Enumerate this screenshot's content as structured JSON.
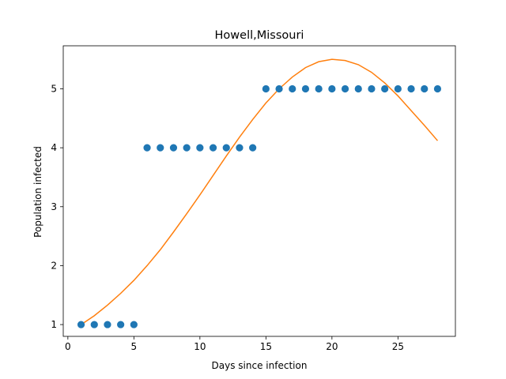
{
  "chart_data": {
    "type": "scatter",
    "title": "Howell,Missouri",
    "xlabel": "Days since infection",
    "ylabel": "Population infected",
    "xlim": [
      -0.35,
      29.35
    ],
    "ylim": [
      0.8,
      5.73
    ],
    "x_ticks": [
      0,
      5,
      10,
      15,
      20,
      25
    ],
    "y_ticks": [
      1,
      2,
      3,
      4,
      5
    ],
    "grid": false,
    "series": [
      {
        "kind": "scatter",
        "color": "#1f77b4",
        "points": [
          [
            1,
            1
          ],
          [
            2,
            1
          ],
          [
            3,
            1
          ],
          [
            4,
            1
          ],
          [
            5,
            1
          ],
          [
            6,
            4
          ],
          [
            7,
            4
          ],
          [
            8,
            4
          ],
          [
            9,
            4
          ],
          [
            10,
            4
          ],
          [
            11,
            4
          ],
          [
            12,
            4
          ],
          [
            13,
            4
          ],
          [
            14,
            4
          ],
          [
            15,
            5
          ],
          [
            16,
            5
          ],
          [
            17,
            5
          ],
          [
            18,
            5
          ],
          [
            19,
            5
          ],
          [
            20,
            5
          ],
          [
            21,
            5
          ],
          [
            22,
            5
          ],
          [
            23,
            5
          ],
          [
            24,
            5
          ],
          [
            25,
            5
          ],
          [
            26,
            5
          ],
          [
            27,
            5
          ],
          [
            28,
            5
          ]
        ]
      },
      {
        "kind": "line",
        "color": "#ff7f0e",
        "points": [
          [
            1,
            1.0
          ],
          [
            2,
            1.15
          ],
          [
            3,
            1.33
          ],
          [
            4,
            1.53
          ],
          [
            5,
            1.75
          ],
          [
            6,
            2.0
          ],
          [
            7,
            2.27
          ],
          [
            8,
            2.57
          ],
          [
            9,
            2.88
          ],
          [
            10,
            3.2
          ],
          [
            11,
            3.53
          ],
          [
            12,
            3.86
          ],
          [
            13,
            4.18
          ],
          [
            14,
            4.48
          ],
          [
            15,
            4.76
          ],
          [
            16,
            5.0
          ],
          [
            17,
            5.2
          ],
          [
            18,
            5.36
          ],
          [
            19,
            5.46
          ],
          [
            20,
            5.5
          ],
          [
            21,
            5.48
          ],
          [
            22,
            5.41
          ],
          [
            23,
            5.28
          ],
          [
            24,
            5.1
          ],
          [
            25,
            4.88
          ],
          [
            26,
            4.63
          ],
          [
            27,
            4.38
          ],
          [
            28,
            4.12
          ]
        ]
      }
    ]
  }
}
